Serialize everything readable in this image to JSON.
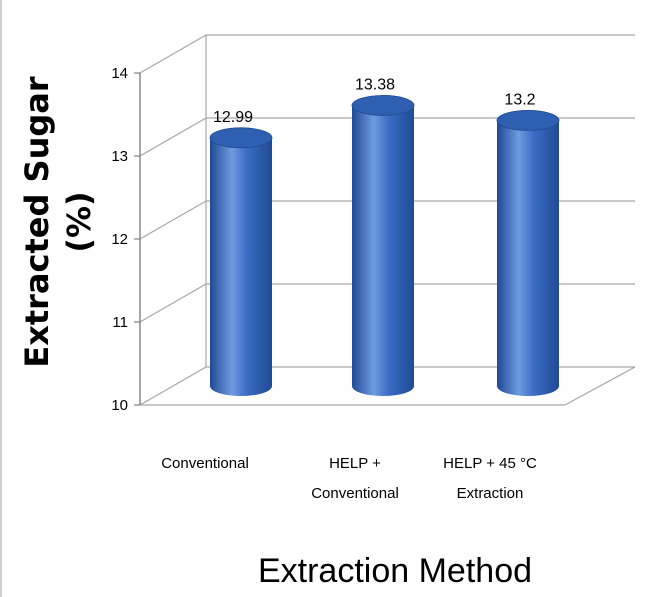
{
  "chart_data": {
    "type": "bar",
    "categories": [
      [
        "Conventional"
      ],
      [
        "HELP +",
        "Conventional"
      ],
      [
        "HELP + 45 °C",
        "Extraction"
      ]
    ],
    "values": [
      12.99,
      13.38,
      13.2
    ],
    "data_labels": [
      "12.99",
      "13.38",
      "13.2"
    ],
    "xlabel": "Extraction Method",
    "ylabel_lines": [
      "Extracted Sugar",
      "(%)"
    ],
    "ylim": [
      10,
      14
    ],
    "yticks": [
      "10",
      "11",
      "12",
      "13",
      "14"
    ],
    "grid": true,
    "style": "3d-cylinder",
    "colors": {
      "bar_light": "#6f9be0",
      "bar_mid": "#3a6cc4",
      "bar_dark": "#1f4a94",
      "bar_top": "#2f5fb0",
      "grid": "#a6a6a6"
    }
  }
}
